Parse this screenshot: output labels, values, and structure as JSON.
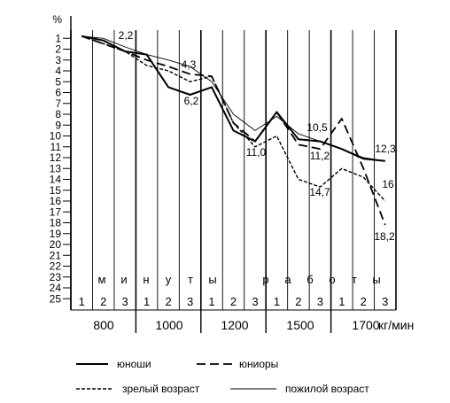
{
  "chart_data": {
    "type": "line",
    "y_unit": "%",
    "y_ticks": [
      1,
      2,
      3,
      4,
      5,
      6,
      7,
      8,
      9,
      10,
      11,
      12,
      13,
      14,
      15,
      16,
      17,
      18,
      19,
      20,
      21,
      22,
      23,
      24,
      25
    ],
    "y_inverted": true,
    "subcategories": [
      "1",
      "2",
      "3",
      "1",
      "2",
      "3",
      "1",
      "2",
      "3",
      "1",
      "2",
      "3",
      "1",
      "2",
      "3"
    ],
    "groups": [
      "800",
      "1000",
      "1200",
      "1500",
      "1700"
    ],
    "x_unit": "кг/мин",
    "phrase_words": [
      "минуты",
      "работы"
    ],
    "series": [
      {
        "name": "юноши",
        "style": "solid-thick",
        "values": [
          0.8,
          1.2,
          2.2,
          2.5,
          5.5,
          6.2,
          5.5,
          9.5,
          10.5,
          7.8,
          10.3,
          10.5,
          11.2,
          12.1,
          12.3
        ]
      },
      {
        "name": "юниоры",
        "style": "dashed",
        "values": [
          0.8,
          1.5,
          2.2,
          3.0,
          3.6,
          4.3,
          4.5,
          8.8,
          10.5,
          7.8,
          10.8,
          11.2,
          8.4,
          13.0,
          18.2
        ]
      },
      {
        "name": "зрелый возраст",
        "style": "dotted",
        "values": [
          0.8,
          1.5,
          2.2,
          3.5,
          4.0,
          5.0,
          4.5,
          8.8,
          11.0,
          10.0,
          14.0,
          14.7,
          13.0,
          13.8,
          16.0
        ]
      },
      {
        "name": "пожилой возраст",
        "style": "thin",
        "values": [
          0.8,
          1.0,
          1.8,
          2.5,
          3.0,
          3.6,
          5.0,
          8.0,
          9.5,
          8.2,
          9.8,
          10.5,
          11.2,
          12.0,
          12.3
        ]
      }
    ],
    "annotations": [
      "2,2",
      "4,3",
      "6,2",
      "11,0",
      "10,5",
      "11,2",
      "14,7",
      "12,3",
      "16",
      "18,2"
    ]
  }
}
